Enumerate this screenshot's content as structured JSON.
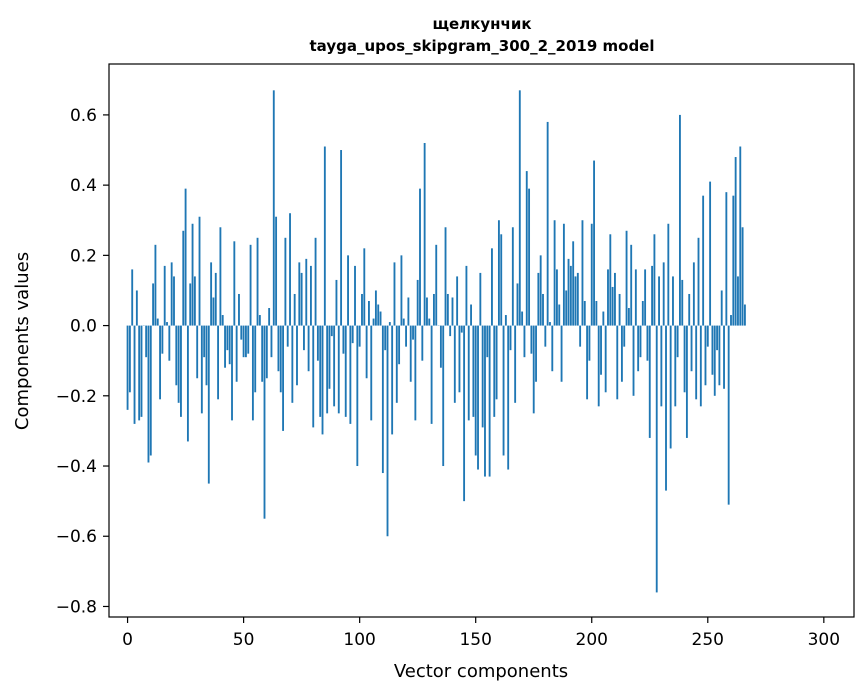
{
  "chart_data": {
    "type": "bar",
    "title": "щелкунчик",
    "subtitle": "tayga_upos_skipgram_300_2_2019 model",
    "xlabel": "Vector components",
    "ylabel": "Components values",
    "xlim": [
      -8,
      313
    ],
    "ylim": [
      -0.83,
      0.745
    ],
    "x_ticks": [
      0,
      50,
      100,
      150,
      200,
      250,
      300
    ],
    "x_tick_labels": [
      "0",
      "50",
      "100",
      "150",
      "200",
      "250",
      "300"
    ],
    "y_ticks": [
      -0.8,
      -0.6,
      -0.4,
      -0.2,
      0.0,
      0.2,
      0.4,
      0.6
    ],
    "y_tick_labels": [
      "−0.8",
      "−0.6",
      "−0.4",
      "−0.2",
      "0.0",
      "0.2",
      "0.4",
      "0.6"
    ],
    "bar_color": "#1f77b4",
    "grid": false,
    "legend": "none",
    "values": [
      -0.24,
      -0.19,
      0.16,
      -0.28,
      0.1,
      -0.27,
      -0.26,
      0.0,
      -0.09,
      -0.39,
      -0.37,
      0.12,
      0.23,
      0.02,
      -0.21,
      -0.08,
      0.17,
      0.01,
      -0.1,
      0.18,
      0.14,
      -0.17,
      -0.22,
      -0.26,
      0.27,
      0.39,
      -0.33,
      0.12,
      0.29,
      0.14,
      -0.15,
      0.31,
      -0.25,
      -0.09,
      -0.17,
      -0.45,
      0.18,
      0.08,
      0.15,
      -0.21,
      0.28,
      0.03,
      -0.12,
      -0.07,
      -0.11,
      -0.27,
      0.24,
      -0.16,
      0.09,
      -0.04,
      -0.09,
      -0.09,
      -0.08,
      0.23,
      -0.27,
      -0.19,
      0.25,
      0.03,
      -0.16,
      -0.55,
      -0.15,
      0.05,
      -0.09,
      0.67,
      0.31,
      -0.13,
      -0.19,
      -0.3,
      0.25,
      -0.06,
      0.32,
      -0.22,
      0.09,
      -0.17,
      0.18,
      0.15,
      -0.07,
      0.19,
      -0.13,
      0.17,
      -0.29,
      0.25,
      -0.1,
      -0.26,
      -0.31,
      0.51,
      -0.25,
      -0.18,
      -0.03,
      -0.23,
      0.13,
      -0.25,
      0.5,
      -0.08,
      -0.26,
      0.2,
      -0.28,
      -0.05,
      0.17,
      -0.4,
      -0.06,
      0.09,
      0.22,
      -0.15,
      0.07,
      -0.27,
      0.02,
      0.1,
      0.06,
      0.04,
      -0.42,
      -0.07,
      -0.6,
      0.01,
      -0.31,
      0.18,
      -0.22,
      -0.11,
      0.2,
      0.02,
      -0.06,
      0.08,
      -0.16,
      -0.04,
      -0.27,
      0.13,
      0.39,
      -0.1,
      0.52,
      0.08,
      0.02,
      -0.28,
      0.09,
      0.23,
      0.0,
      -0.12,
      -0.4,
      0.28,
      0.09,
      -0.03,
      0.08,
      -0.22,
      0.14,
      -0.19,
      -0.02,
      -0.5,
      0.17,
      -0.27,
      0.06,
      -0.26,
      -0.37,
      -0.41,
      0.15,
      -0.29,
      -0.43,
      -0.09,
      -0.43,
      0.22,
      -0.26,
      -0.21,
      0.3,
      0.26,
      -0.37,
      0.03,
      -0.41,
      -0.07,
      0.28,
      -0.22,
      0.12,
      0.67,
      0.04,
      -0.09,
      0.44,
      0.39,
      -0.08,
      -0.25,
      -0.16,
      0.15,
      0.2,
      0.09,
      -0.06,
      0.58,
      0.01,
      -0.13,
      0.3,
      0.16,
      0.06,
      -0.16,
      0.29,
      0.1,
      0.19,
      0.17,
      0.24,
      0.14,
      0.15,
      -0.06,
      0.3,
      0.07,
      -0.21,
      -0.1,
      0.29,
      0.47,
      0.07,
      -0.23,
      -0.14,
      0.04,
      -0.19,
      0.16,
      0.26,
      0.11,
      0.15,
      -0.21,
      0.09,
      -0.16,
      -0.06,
      0.27,
      0.05,
      0.23,
      -0.2,
      0.16,
      -0.13,
      -0.09,
      0.07,
      0.16,
      -0.1,
      -0.32,
      0.17,
      0.26,
      -0.76,
      0.14,
      -0.23,
      0.18,
      -0.47,
      0.29,
      -0.35,
      0.14,
      -0.23,
      -0.09,
      0.6,
      0.13,
      -0.19,
      -0.32,
      0.09,
      -0.13,
      0.18,
      -0.21,
      0.25,
      -0.23,
      0.37,
      -0.17,
      -0.06,
      0.41,
      -0.14,
      -0.2,
      -0.07,
      -0.17,
      0.1,
      -0.18,
      0.38,
      -0.51,
      0.03,
      0.37,
      0.48,
      0.14,
      0.51,
      0.28,
      0.06
    ]
  }
}
